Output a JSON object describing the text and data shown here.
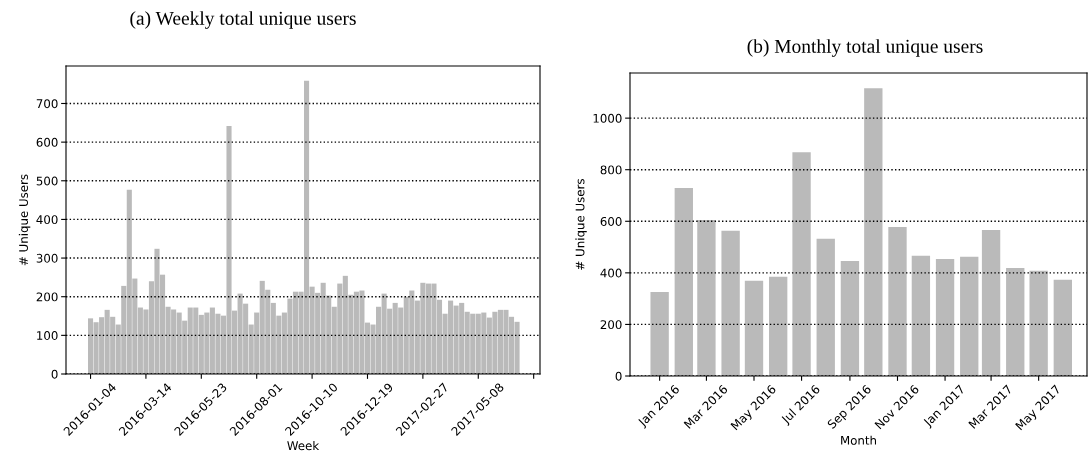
{
  "chart_data": [
    {
      "type": "bar",
      "title": "(a) Weekly total unique users",
      "xlabel": "Week",
      "ylabel": "# Unique Users",
      "color": "#bababa",
      "grid": "y",
      "x": [
        "2016-01-04",
        "2016-01-11",
        "2016-01-18",
        "2016-01-25",
        "2016-02-01",
        "2016-02-08",
        "2016-02-15",
        "2016-02-22",
        "2016-02-29",
        "2016-03-07",
        "2016-03-14",
        "2016-03-21",
        "2016-03-28",
        "2016-04-04",
        "2016-04-11",
        "2016-04-18",
        "2016-04-25",
        "2016-05-02",
        "2016-05-09",
        "2016-05-16",
        "2016-05-23",
        "2016-05-30",
        "2016-06-06",
        "2016-06-13",
        "2016-06-20",
        "2016-06-27",
        "2016-07-04",
        "2016-07-11",
        "2016-07-18",
        "2016-07-25",
        "2016-08-01",
        "2016-08-08",
        "2016-08-15",
        "2016-08-22",
        "2016-08-29",
        "2016-09-05",
        "2016-09-12",
        "2016-09-19",
        "2016-09-26",
        "2016-10-03",
        "2016-10-10",
        "2016-10-17",
        "2016-10-24",
        "2016-10-31",
        "2016-11-07",
        "2016-11-14",
        "2016-11-21",
        "2016-11-28",
        "2016-12-05",
        "2016-12-12",
        "2016-12-19",
        "2016-12-26",
        "2017-01-02",
        "2017-01-09",
        "2017-01-16",
        "2017-01-23",
        "2017-01-30",
        "2017-02-06",
        "2017-02-13",
        "2017-02-20",
        "2017-02-27",
        "2017-03-06",
        "2017-03-13",
        "2017-03-20",
        "2017-03-27",
        "2017-04-03",
        "2017-04-10",
        "2017-04-17",
        "2017-04-24",
        "2017-05-01",
        "2017-05-08",
        "2017-05-15",
        "2017-05-22",
        "2017-05-29",
        "2017-06-05",
        "2017-06-12",
        "2017-06-19",
        "2017-06-26"
      ],
      "values": [
        144,
        134,
        147,
        166,
        148,
        128,
        228,
        477,
        247,
        172,
        167,
        240,
        324,
        257,
        174,
        167,
        159,
        138,
        172,
        172,
        153,
        159,
        172,
        156,
        151,
        642,
        164,
        208,
        182,
        128,
        159,
        241,
        218,
        184,
        151,
        159,
        195,
        213,
        213,
        759,
        226,
        210,
        236,
        203,
        174,
        234,
        254,
        205,
        213,
        216,
        133,
        128,
        174,
        208,
        169,
        184,
        172,
        200,
        216,
        190,
        236,
        234,
        234,
        192,
        156,
        190,
        177,
        184,
        161,
        156,
        156,
        159,
        146,
        161,
        166,
        166,
        148,
        135
      ],
      "xlim": [
        "2015-12-04",
        "2017-07-25"
      ],
      "xticks": [
        {
          "value": "2016-01-04",
          "label": "2016-01-04"
        },
        {
          "value": "2016-03-14",
          "label": "2016-03-14"
        },
        {
          "value": "2016-05-23",
          "label": "2016-05-23"
        },
        {
          "value": "2016-08-01",
          "label": "2016-08-01"
        },
        {
          "value": "2016-10-10",
          "label": "2016-10-10"
        },
        {
          "value": "2016-12-19",
          "label": "2016-12-19"
        },
        {
          "value": "2017-02-27",
          "label": "2017-02-27"
        },
        {
          "value": "2017-05-08",
          "label": "2017-05-08"
        },
        {
          "value": "2017-07-17",
          "label": null
        }
      ],
      "ylim": [
        0,
        797
      ],
      "yticks": [
        0,
        100,
        200,
        300,
        400,
        500,
        600,
        700
      ]
    },
    {
      "type": "bar",
      "title": "(b) Monthly total unique users",
      "xlabel": "Month",
      "ylabel": "# Unique Users",
      "color": "#bababa",
      "grid": "y",
      "x": [
        "2016-01",
        "2016-02",
        "2016-03",
        "2016-04",
        "2016-05",
        "2016-06",
        "2016-07",
        "2016-08",
        "2016-09",
        "2016-10",
        "2016-11",
        "2016-12",
        "2017-01",
        "2017-02",
        "2017-03",
        "2017-04",
        "2017-05",
        "2017-06"
      ],
      "values": [
        326,
        729,
        605,
        563,
        369,
        385,
        868,
        532,
        446,
        1116,
        578,
        466,
        454,
        462,
        566,
        419,
        408,
        373
      ],
      "xlim": [
        "2015-11-24",
        "2017-07-02"
      ],
      "xticks": [
        {
          "value": "2016-01",
          "label": "Jan 2016"
        },
        {
          "value": "2016-03",
          "label": "Mar 2016"
        },
        {
          "value": "2016-05",
          "label": "May 2016"
        },
        {
          "value": "2016-07",
          "label": "Jul 2016"
        },
        {
          "value": "2016-09",
          "label": "Sep 2016"
        },
        {
          "value": "2016-11",
          "label": "Nov 2016"
        },
        {
          "value": "2017-01",
          "label": "Jan 2017"
        },
        {
          "value": "2017-03",
          "label": "Mar 2017"
        },
        {
          "value": "2017-05",
          "label": "May 2017"
        }
      ],
      "ylim": [
        0,
        1175
      ],
      "yticks": [
        0,
        200,
        400,
        600,
        800,
        1000
      ]
    }
  ]
}
